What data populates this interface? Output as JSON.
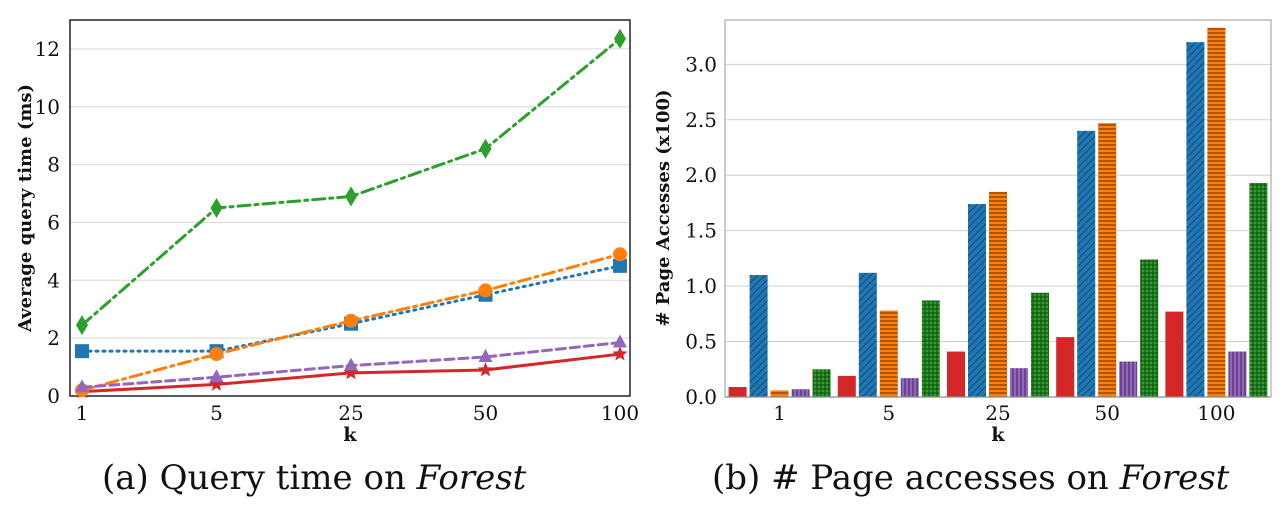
{
  "captions": [
    {
      "prefix": "(a) Query time on ",
      "emph": "Forest"
    },
    {
      "prefix": "(b) # Page accesses on ",
      "emph": "Forest"
    }
  ],
  "colors": {
    "red": "#d62728",
    "blue": "#1f77b4",
    "orange": "#ff7f0e",
    "purple": "#9467bd",
    "green": "#2ca02c"
  },
  "chart_data": [
    {
      "type": "line",
      "xlabel": "k",
      "ylabel": "Average  query time (ms)",
      "categories": [
        "1",
        "5",
        "25",
        "50",
        "100"
      ],
      "ylim": [
        0,
        13
      ],
      "yticks": [
        "0",
        "2",
        "4",
        "6",
        "8",
        "10",
        "12"
      ],
      "grid": "horizontal",
      "series": [
        {
          "color": "#d62728",
          "marker": "star",
          "dash": "solid",
          "values": [
            0.15,
            0.4,
            0.8,
            0.9,
            1.45
          ]
        },
        {
          "color": "#1f77b4",
          "marker": "square",
          "dash": "dotted",
          "values": [
            1.55,
            1.55,
            2.5,
            3.5,
            4.5
          ]
        },
        {
          "color": "#ff7f0e",
          "marker": "circle",
          "dash": "dashdot",
          "values": [
            0.2,
            1.45,
            2.6,
            3.65,
            4.9
          ]
        },
        {
          "color": "#9467bd",
          "marker": "triangle",
          "dash": "dashed",
          "values": [
            0.3,
            0.65,
            1.05,
            1.35,
            1.85
          ]
        },
        {
          "color": "#2ca02c",
          "marker": "diamond",
          "dash": "dashdot",
          "values": [
            2.45,
            6.5,
            6.9,
            8.55,
            12.35
          ]
        }
      ]
    },
    {
      "type": "bar",
      "xlabel": "k",
      "ylabel": "# Page Accesses (x100)",
      "categories": [
        "1",
        "5",
        "25",
        "50",
        "100"
      ],
      "ylim": [
        0,
        3.4
      ],
      "yticks": [
        "0.0",
        "0.5",
        "1.0",
        "1.5",
        "2.0",
        "2.5",
        "3.0"
      ],
      "grid": "horizontal",
      "series": [
        {
          "color": "#d62728",
          "values": [
            0.09,
            0.19,
            0.41,
            0.54,
            0.77
          ]
        },
        {
          "color": "#1f77b4",
          "values": [
            1.1,
            1.12,
            1.74,
            2.4,
            3.2
          ]
        },
        {
          "color": "#ff7f0e",
          "values": [
            0.06,
            0.78,
            1.85,
            2.47,
            3.33
          ]
        },
        {
          "color": "#9467bd",
          "values": [
            0.07,
            0.17,
            0.26,
            0.32,
            0.41
          ]
        },
        {
          "color": "#2ca02c",
          "values": [
            0.25,
            0.87,
            0.94,
            1.24,
            1.93
          ]
        }
      ]
    }
  ]
}
